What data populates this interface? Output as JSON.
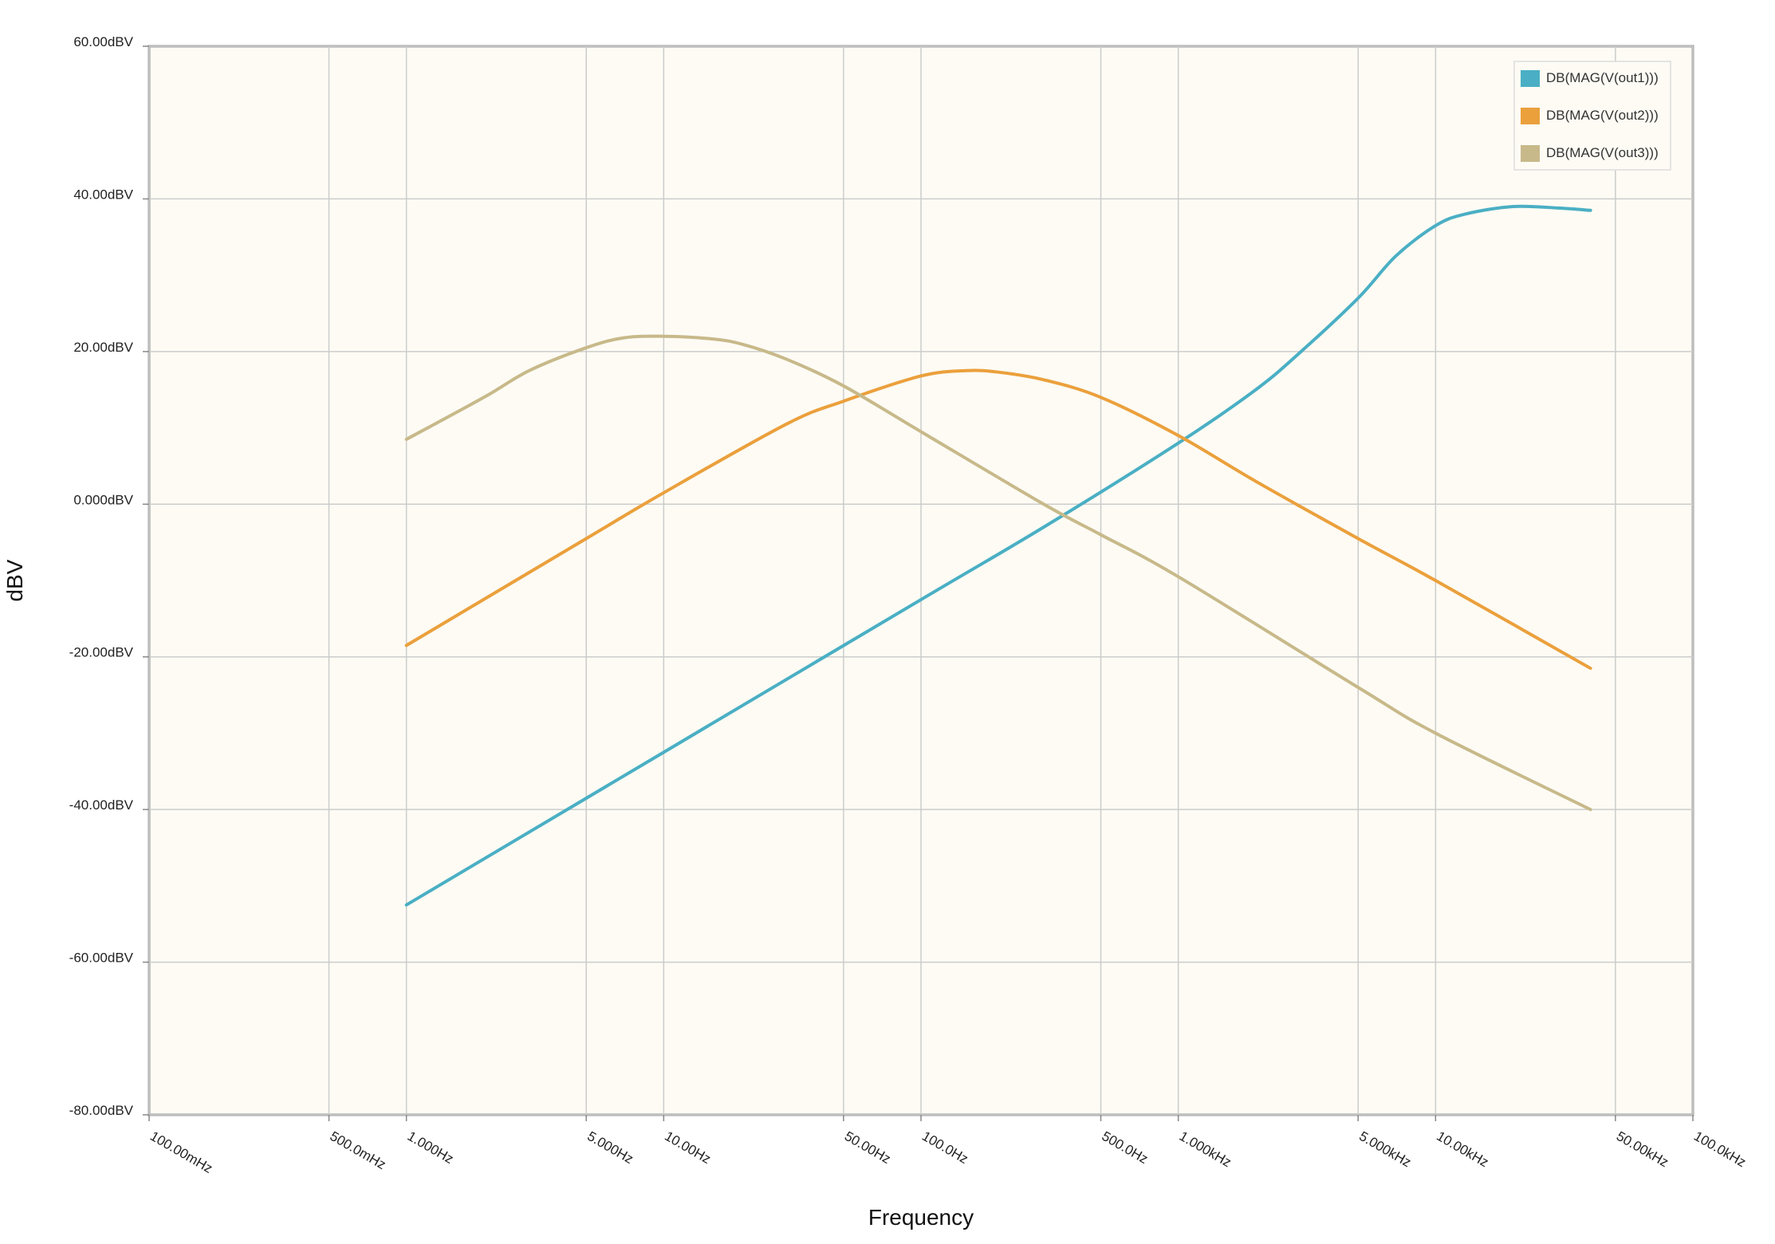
{
  "chart_data": {
    "type": "line",
    "xlabel": "Frequency",
    "ylabel": "dBV",
    "x_scale": "log",
    "xlim": [
      0.1,
      100000
    ],
    "ylim": [
      -80,
      60
    ],
    "grid": true,
    "legend_position": "top-right",
    "x_ticks": [
      {
        "value": 0.1,
        "label": "100.00mHz"
      },
      {
        "value": 0.5,
        "label": "500.0mHz"
      },
      {
        "value": 1,
        "label": "1.000Hz"
      },
      {
        "value": 5,
        "label": "5.000Hz"
      },
      {
        "value": 10,
        "label": "10.00Hz"
      },
      {
        "value": 50,
        "label": "50.00Hz"
      },
      {
        "value": 100,
        "label": "100.0Hz"
      },
      {
        "value": 500,
        "label": "500.0Hz"
      },
      {
        "value": 1000,
        "label": "1.000kHz"
      },
      {
        "value": 5000,
        "label": "5.000kHz"
      },
      {
        "value": 10000,
        "label": "10.00kHz"
      },
      {
        "value": 50000,
        "label": "50.00kHz"
      },
      {
        "value": 100000,
        "label": "100.0kHz"
      }
    ],
    "y_ticks": [
      {
        "value": 60,
        "label": "60.00dBV"
      },
      {
        "value": 40,
        "label": "40.00dBV"
      },
      {
        "value": 20,
        "label": "20.00dBV"
      },
      {
        "value": 0,
        "label": "0.000dBV"
      },
      {
        "value": -20,
        "label": "-20.00dBV"
      },
      {
        "value": -40,
        "label": "-40.00dBV"
      },
      {
        "value": -60,
        "label": "-60.00dBV"
      },
      {
        "value": -80,
        "label": "-80.00dBV"
      }
    ],
    "series": [
      {
        "name": "DB(MAG(V(out1)))",
        "color": "#4aafc4",
        "x": [
          1,
          10,
          100,
          300,
          1000,
          2000,
          3000,
          5000,
          7000,
          10000,
          13000,
          20000,
          30000,
          40000
        ],
        "y": [
          -52.5,
          -32.5,
          -12.5,
          -3,
          8,
          15,
          20,
          27,
          32.5,
          36.5,
          38,
          39,
          38.8,
          38.5
        ]
      },
      {
        "name": "DB(MAG(V(out2)))",
        "color": "#eba03c",
        "x": [
          1,
          5,
          10,
          30,
          50,
          100,
          150,
          200,
          300,
          500,
          1000,
          2000,
          5000,
          10000,
          40000
        ],
        "y": [
          -18.5,
          -4.5,
          1.5,
          10.5,
          13.5,
          16.8,
          17.5,
          17.3,
          16.3,
          14,
          9,
          3,
          -4.5,
          -10,
          -21.5
        ]
      },
      {
        "name": "DB(MAG(V(out3)))",
        "color": "#c8b98a",
        "x": [
          1,
          2,
          3,
          5,
          7,
          10,
          15,
          20,
          30,
          50,
          100,
          300,
          500,
          1000,
          5000,
          10000,
          40000
        ],
        "y": [
          8.5,
          14,
          17.5,
          20.5,
          21.8,
          22,
          21.7,
          21,
          19,
          15.5,
          9.5,
          0,
          -4,
          -9.5,
          -24,
          -30,
          -40
        ]
      }
    ]
  }
}
